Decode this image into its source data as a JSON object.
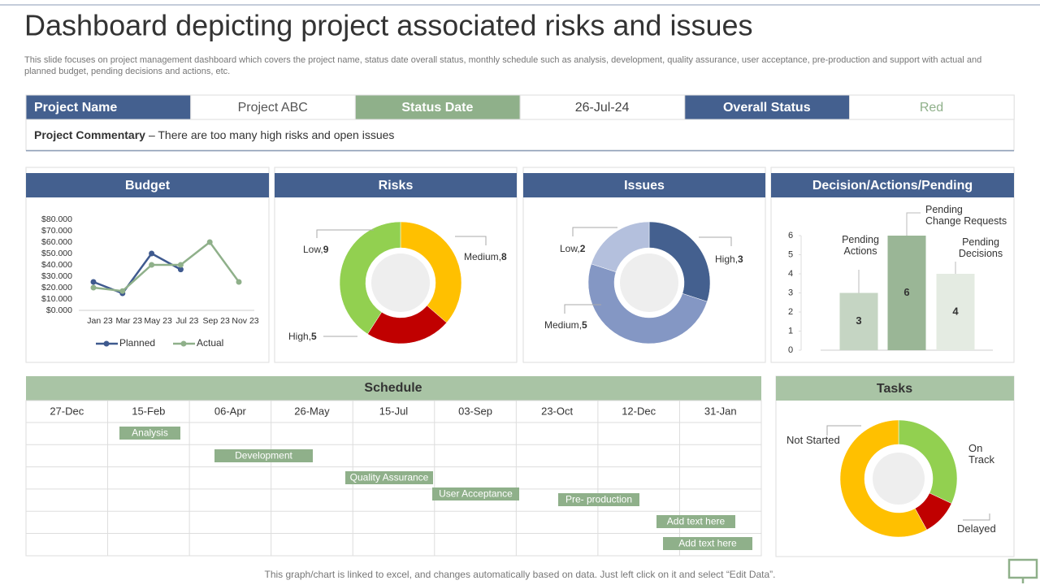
{
  "header": {
    "title": "Dashboard depicting project associated risks and issues",
    "description": "This slide focuses on project management dashboard which covers the project name, status date overall status, monthly schedule such as analysis, development, quality assurance, user acceptance, pre-production and support with actual and planned budget, pending decisions and actions, etc."
  },
  "project": {
    "name_label": "Project Name",
    "name": "Project ABC",
    "date_label": "Status Date",
    "date": "26-Jul-24",
    "status_label": "Overall Status",
    "status": "Red",
    "commentary_label": "Project Commentary",
    "commentary": "– There are too many high risks and open issues"
  },
  "schedule": {
    "title": "Schedule",
    "dates": [
      "27-Dec",
      "15-Feb",
      "06-Apr",
      "26-May",
      "15-Jul",
      "03-Sep",
      "23-Oct",
      "12-Dec",
      "31-Jan"
    ],
    "tasks": [
      "Analysis",
      "Development",
      "Quality Assurance",
      "User Acceptance",
      "Pre- production",
      "Add text here",
      "Add text here"
    ]
  },
  "footer": "This graph/chart is linked to excel,  and changes automatically based on data. Just left click on it and select “Edit Data”.",
  "chart_data": [
    {
      "type": "line",
      "title": "Budget",
      "categories": [
        "Jan 23",
        "Mar 23",
        "May 23",
        "Jul 23",
        "Sep 23",
        "Nov 23"
      ],
      "series": [
        {
          "name": "Planned",
          "color": "#3f5a8f",
          "values": [
            25000,
            15000,
            50000,
            36000,
            null,
            null
          ]
        },
        {
          "name": "Actual",
          "color": "#8fb08a",
          "values": [
            20000,
            17000,
            40000,
            40000,
            60000,
            25000
          ]
        }
      ],
      "ylim": [
        0,
        80000
      ],
      "yticks": [
        {
          "value": 0,
          "label": "$0.000"
        },
        {
          "value": 10000,
          "label": "$10.000"
        },
        {
          "value": 20000,
          "label": "$20.000"
        },
        {
          "value": 30000,
          "label": "$30.000"
        },
        {
          "value": 40000,
          "label": "$40.000"
        },
        {
          "value": 50000,
          "label": "$50.000"
        },
        {
          "value": 60000,
          "label": "$60.000"
        },
        {
          "value": 70000,
          "label": "$70.000"
        },
        {
          "value": 80000,
          "label": "$80.000"
        }
      ],
      "legend": "bottom"
    },
    {
      "type": "donut",
      "title": "Risks",
      "categories": [
        "Medium",
        "High",
        "Low"
      ],
      "values": [
        8,
        5,
        9
      ],
      "colors": [
        "#ffc000",
        "#c00000",
        "#92d050"
      ]
    },
    {
      "type": "donut",
      "title": "Issues",
      "categories": [
        "High",
        "Medium",
        "Low"
      ],
      "values": [
        3,
        5,
        2
      ],
      "colors": [
        "#44608f",
        "#8497c4",
        "#b4c0dd"
      ]
    },
    {
      "type": "bar",
      "title": "Decision/Actions/Pending",
      "categories": [
        [
          "Pending",
          "Actions"
        ],
        [
          "Pending",
          "Change Requests"
        ],
        [
          "Pending",
          "Decisions"
        ]
      ],
      "values": [
        3,
        6,
        4
      ],
      "colors": [
        "#c5d5c3",
        "#9ab696",
        "#e4ebe2"
      ],
      "ylim": [
        0,
        6
      ],
      "yticks": [
        0,
        1,
        2,
        3,
        4,
        5,
        6
      ]
    },
    {
      "type": "donut",
      "title": "Tasks",
      "categories": [
        "On Track",
        "Delayed",
        "Not Started"
      ],
      "values": [
        32,
        10,
        58
      ],
      "colors": [
        "#92d050",
        "#c00000",
        "#ffc000"
      ]
    }
  ]
}
